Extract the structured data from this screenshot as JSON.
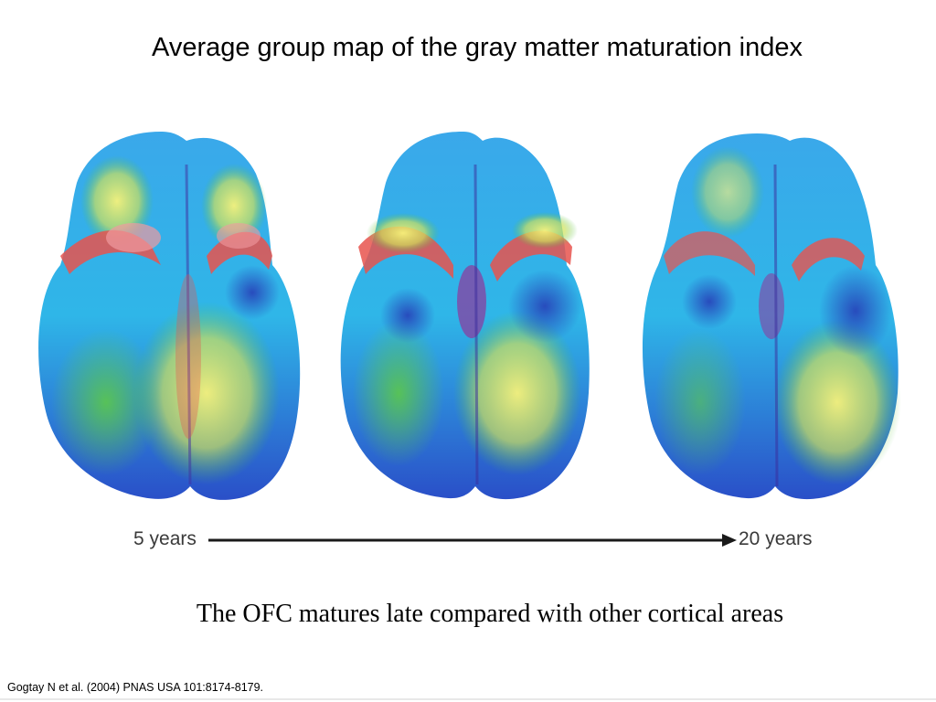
{
  "slide": {
    "title": "Average group map of the gray matter maturation index",
    "caption": "The OFC matures late compared with other cortical areas",
    "citation": "Gogtay N et al. (2004) PNAS USA 101:8174-8179."
  },
  "figure": {
    "start_label": "5 years",
    "end_label": "20 years",
    "colors": {
      "blue": "#2a6fd6",
      "cyan": "#3cc8ee",
      "green": "#52c04a",
      "yellow": "#f3ef6a",
      "red": "#e8544e",
      "purple": "#7a3fa0"
    }
  }
}
